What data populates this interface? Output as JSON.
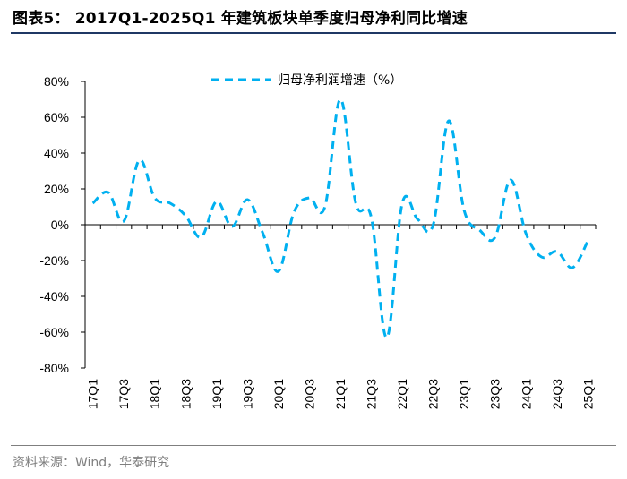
{
  "header": {
    "title": "图表5：  2017Q1-2025Q1 年建筑板块单季度归母净利同比增速"
  },
  "footer": {
    "source": "资料来源：Wind，华泰研究"
  },
  "chart_data": {
    "type": "line",
    "title": "2017Q1-2025Q1 年建筑板块单季度归母净利同比增速",
    "xlabel": "",
    "ylabel": "",
    "ylim": [
      -80,
      80
    ],
    "y_ticks": [
      80,
      60,
      40,
      20,
      0,
      -20,
      -40,
      -60,
      -80
    ],
    "y_tick_labels": [
      "80%",
      "60%",
      "40%",
      "20%",
      "0%",
      "-20%",
      "-40%",
      "-60%",
      "-80%"
    ],
    "legend_position": "top-center",
    "line_color": "#00b0f0",
    "line_style": "dashed",
    "categories": [
      "17Q1",
      "17Q2",
      "17Q3",
      "17Q4",
      "18Q1",
      "18Q2",
      "18Q3",
      "18Q4",
      "19Q1",
      "19Q2",
      "19Q3",
      "19Q4",
      "20Q1",
      "20Q2",
      "20Q3",
      "20Q4",
      "21Q1",
      "21Q2",
      "21Q3",
      "21Q4",
      "22Q1",
      "22Q2",
      "22Q3",
      "22Q4",
      "23Q1",
      "23Q2",
      "23Q3",
      "23Q4",
      "24Q1",
      "24Q2",
      "24Q3",
      "24Q4",
      "25Q1"
    ],
    "x_tick_labels": [
      "17Q1",
      "",
      "17Q3",
      "",
      "18Q1",
      "",
      "18Q3",
      "",
      "19Q1",
      "",
      "19Q3",
      "",
      "20Q1",
      "",
      "20Q3",
      "",
      "21Q1",
      "",
      "21Q3",
      "",
      "22Q1",
      "",
      "22Q3",
      "",
      "23Q1",
      "",
      "23Q3",
      "",
      "24Q1",
      "",
      "24Q3",
      "",
      "25Q1"
    ],
    "series": [
      {
        "name": "归母净利润增速（%）",
        "values": [
          12,
          18,
          2,
          36,
          15,
          12,
          5,
          -7,
          13,
          -1,
          14,
          -5,
          -26,
          7,
          15,
          10,
          70,
          12,
          4,
          -63,
          12,
          3,
          0,
          58,
          8,
          -3,
          -7,
          25,
          -5,
          -18,
          -15,
          -24,
          -9
        ]
      }
    ]
  }
}
